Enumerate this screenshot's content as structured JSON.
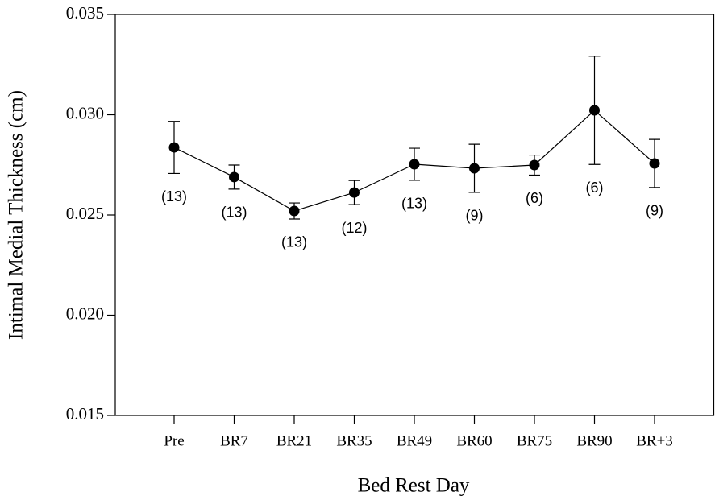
{
  "chart_data": {
    "type": "line",
    "xlabel": "Bed Rest Day",
    "ylabel": "Intimal Medial Thickness (cm)",
    "categories": [
      "Pre",
      "BR7",
      "BR21",
      "BR35",
      "BR49",
      "BR60",
      "BR75",
      "BR90",
      "BR+3"
    ],
    "series": [
      {
        "color": "#000000",
        "values": [
          0.02837,
          0.02689,
          0.0252,
          0.02612,
          0.02753,
          0.02733,
          0.02749,
          0.03022,
          0.02757
        ],
        "errors": [
          0.0013,
          0.0006,
          0.0004,
          0.0006,
          0.0008,
          0.0012,
          0.0005,
          0.0027,
          0.0012
        ]
      }
    ],
    "annotations": [
      "(13)",
      "(13)",
      "(13)",
      "(12)",
      "(13)",
      "(9)",
      "(6)",
      "(6)",
      "(9)"
    ],
    "ylim": [
      0.015,
      0.035
    ],
    "yticks": [
      0.015,
      {
        "value": 0.02,
        "label": "0.020"
      },
      0.025,
      {
        "value": 0.03,
        "label": "0.030"
      },
      0.035
    ]
  }
}
